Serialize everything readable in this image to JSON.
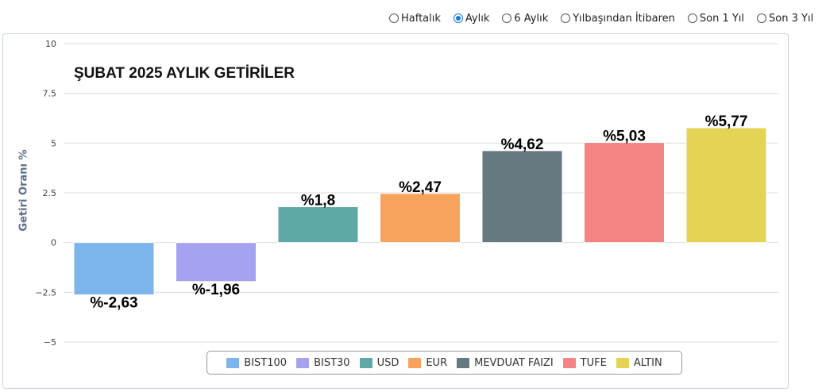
{
  "period_selector": {
    "options": [
      {
        "label": "Haftalık",
        "checked": false
      },
      {
        "label": "Aylık",
        "checked": true
      },
      {
        "label": "6 Aylık",
        "checked": false
      },
      {
        "label": "Yılbaşından İtibaren",
        "checked": false
      },
      {
        "label": "Son 1 Yıl",
        "checked": false
      },
      {
        "label": "Son 3 Yıl",
        "checked": false
      }
    ]
  },
  "chart_data": {
    "type": "bar",
    "title": "ŞUBAT 2025 AYLIK GETİRİLER",
    "xlabel": "",
    "ylabel": "Getiri Oranı %",
    "ylim": [
      -5,
      10
    ],
    "yticks": [
      10,
      7.5,
      5,
      2.5,
      0,
      -2.5,
      -5
    ],
    "ytick_labels": [
      "10",
      "7.5",
      "5",
      "2.5",
      "0",
      "−2.5",
      "−5"
    ],
    "grid": true,
    "legend_position": "bottom",
    "categories": [
      "BIST100",
      "BIST30",
      "USD",
      "EUR",
      "MEVDUAT FAIZI",
      "TUFE",
      "ALTIN"
    ],
    "values": [
      -2.63,
      -1.96,
      1.8,
      2.47,
      4.62,
      5.03,
      5.77
    ],
    "value_labels": [
      "%-2,63",
      "%-1,96",
      "%1,8",
      "%2,47",
      "%4,62",
      "%5,03",
      "%5,77"
    ],
    "colors": [
      "#7cb5ec",
      "#a5a3ef",
      "#5ea9a6",
      "#f7a35c",
      "#667880",
      "#f48484",
      "#e4d354"
    ]
  }
}
